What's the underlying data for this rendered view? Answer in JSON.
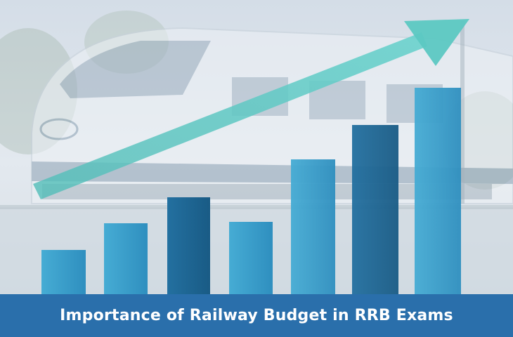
{
  "banner": {
    "title": "Importance of Railway Budget in RRB Exams"
  },
  "colors": {
    "banner": "#2a6fab",
    "bar_dark": "#1f6e98",
    "bar_mid": "#2c8fbd",
    "bar_light": "#3ea9d1",
    "arrow": "#5fc9c4",
    "sky": "#dfe6ee"
  },
  "icons": {
    "train": "train-illustration",
    "arrow": "growth-arrow-icon"
  }
}
